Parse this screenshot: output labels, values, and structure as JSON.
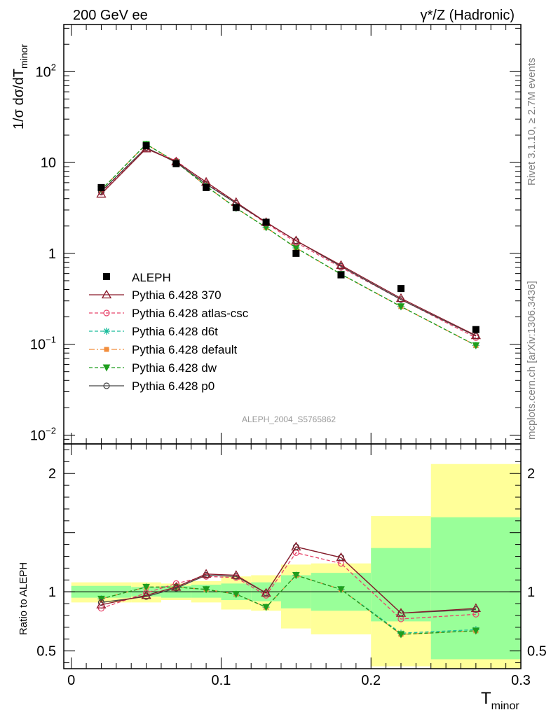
{
  "header": {
    "left": "200 GeV ee",
    "right": "γ*/Z (Hadronic)"
  },
  "side_labels": {
    "rivet": "Rivet 3.1.10, ≥ 2.7M events",
    "mcplots": "mcplots.cern.ch [arXiv:1306.3436]"
  },
  "chart_data": [
    {
      "type": "line",
      "ylabel": "1/σ  dσ/dT",
      "ylabel_sub": "minor",
      "watermark": "ALEPH_2004_S5765862",
      "log_y": true,
      "ylim": [
        0.008,
        330
      ],
      "xlim": [
        -0.005,
        0.3
      ],
      "yticks": [
        {
          "v": 0.01,
          "b": "10",
          "e": "−2"
        },
        {
          "v": 0.1,
          "b": "10",
          "e": "−1"
        },
        {
          "v": 1,
          "b": "1",
          "e": ""
        },
        {
          "v": 10,
          "b": "10",
          "e": ""
        },
        {
          "v": 100,
          "b": "10",
          "e": "2"
        }
      ],
      "data": {
        "name": "ALEPH",
        "x": [
          0.02,
          0.05,
          0.07,
          0.09,
          0.11,
          0.13,
          0.15,
          0.18,
          0.22,
          0.27
        ],
        "y": [
          5.3,
          15.3,
          9.7,
          5.3,
          3.2,
          2.2,
          1.0,
          0.58,
          0.41,
          0.145
        ]
      },
      "series": [
        {
          "name": "Pythia 6.428 370",
          "color": "#8b1a2b",
          "dash": "",
          "marker": "triangle-open",
          "y": [
            4.5,
            14.2,
            10.2,
            6.1,
            3.65,
            2.2,
            1.38,
            0.74,
            0.32,
            0.125
          ]
        },
        {
          "name": "Pythia 6.428 atlas-csc",
          "color": "#e8436a",
          "dash": "5,3",
          "marker": "circle-open",
          "y": [
            4.7,
            14.4,
            10.4,
            6.0,
            3.55,
            2.15,
            1.32,
            0.7,
            0.31,
            0.118
          ]
        },
        {
          "name": "Pythia 6.428 d6t",
          "color": "#1abc9c",
          "dash": "5,3",
          "marker": "star",
          "y": [
            5.0,
            15.9,
            10.1,
            5.5,
            3.15,
            1.93,
            1.15,
            0.59,
            0.26,
            0.097
          ]
        },
        {
          "name": "Pythia 6.428 default",
          "color": "#f28d3c",
          "dash": "8,3,2,3",
          "marker": "square",
          "y": [
            5.0,
            15.9,
            10.1,
            5.5,
            3.15,
            1.93,
            1.15,
            0.59,
            0.26,
            0.097
          ]
        },
        {
          "name": "Pythia 6.428 dw",
          "color": "#1e9e1e",
          "dash": "5,3",
          "marker": "triangle-down",
          "y": [
            5.0,
            15.9,
            10.1,
            5.5,
            3.15,
            1.93,
            1.15,
            0.59,
            0.26,
            0.097
          ]
        },
        {
          "name": "Pythia 6.428 p0",
          "color": "#444444",
          "dash": "",
          "marker": "circle-open",
          "y": [
            4.8,
            14.6,
            10.0,
            5.8,
            3.55,
            2.2,
            1.38,
            0.72,
            0.31,
            0.123
          ]
        }
      ]
    },
    {
      "type": "line",
      "ylabel": "Ratio to ALEPH",
      "xlabel": "T",
      "xlabel_sub": "minor",
      "ylim": [
        0.35,
        2.25
      ],
      "xlim": [
        -0.005,
        0.3
      ],
      "xticks": [
        {
          "v": 0,
          "l": "0"
        },
        {
          "v": 0.1,
          "l": "0.1"
        },
        {
          "v": 0.2,
          "l": "0.2"
        },
        {
          "v": 0.3,
          "l": "0.3"
        }
      ],
      "yticks": [
        {
          "v": 0.5,
          "l": "0.5"
        },
        {
          "v": 1,
          "l": "1"
        },
        {
          "v": 2,
          "l": "2"
        }
      ],
      "bins": [
        {
          "lo": 0.0,
          "hi": 0.04,
          "inner": [
            0.95,
            1.05
          ],
          "outer": [
            0.91,
            1.08
          ]
        },
        {
          "lo": 0.04,
          "hi": 0.06,
          "inner": [
            0.96,
            1.04
          ],
          "outer": [
            0.91,
            1.08
          ]
        },
        {
          "lo": 0.06,
          "hi": 0.08,
          "inner": [
            0.95,
            1.05
          ],
          "outer": [
            0.93,
            1.07
          ]
        },
        {
          "lo": 0.08,
          "hi": 0.1,
          "inner": [
            0.95,
            1.06
          ],
          "outer": [
            0.91,
            1.09
          ]
        },
        {
          "lo": 0.1,
          "hi": 0.12,
          "inner": [
            0.93,
            1.07
          ],
          "outer": [
            0.85,
            1.13
          ]
        },
        {
          "lo": 0.12,
          "hi": 0.14,
          "inner": [
            0.92,
            1.08
          ],
          "outer": [
            0.84,
            1.14
          ]
        },
        {
          "lo": 0.14,
          "hi": 0.16,
          "inner": [
            0.86,
            1.14
          ],
          "outer": [
            0.69,
            1.23
          ]
        },
        {
          "lo": 0.16,
          "hi": 0.2,
          "inner": [
            0.84,
            1.16
          ],
          "outer": [
            0.64,
            1.24
          ]
        },
        {
          "lo": 0.2,
          "hi": 0.24,
          "inner": [
            0.75,
            1.37
          ],
          "outer": [
            0.37,
            1.64
          ]
        },
        {
          "lo": 0.24,
          "hi": 0.3,
          "inner": [
            0.43,
            1.63
          ],
          "outer": [
            0.35,
            2.08
          ]
        }
      ],
      "series": [
        {
          "name": "Pythia 6.428 370",
          "y": [
            0.89,
            0.97,
            1.04,
            1.15,
            1.14,
            0.99,
            1.38,
            1.29,
            0.82,
            0.86
          ]
        },
        {
          "name": "Pythia 6.428 atlas-csc",
          "y": [
            0.86,
            0.99,
            1.07,
            1.13,
            1.12,
            0.97,
            1.33,
            1.24,
            0.77,
            0.81
          ]
        },
        {
          "name": "Pythia 6.428 d6t",
          "y": [
            0.94,
            1.04,
            1.04,
            1.02,
            0.98,
            0.87,
            1.14,
            1.02,
            0.65,
            0.68
          ]
        },
        {
          "name": "Pythia 6.428 default",
          "y": [
            0.94,
            1.04,
            1.04,
            1.02,
            0.98,
            0.87,
            1.14,
            1.02,
            0.64,
            0.67
          ]
        },
        {
          "name": "Pythia 6.428 dw",
          "y": [
            0.94,
            1.04,
            1.04,
            1.02,
            0.98,
            0.87,
            1.14,
            1.02,
            0.64,
            0.67
          ]
        },
        {
          "name": "Pythia 6.428 p0",
          "y": [
            0.91,
            0.96,
            1.03,
            1.14,
            1.13,
            0.99,
            1.38,
            1.29,
            0.82,
            0.85
          ]
        }
      ],
      "band_colors": {
        "inner": "#99ff99",
        "outer": "#ffff99"
      }
    }
  ]
}
